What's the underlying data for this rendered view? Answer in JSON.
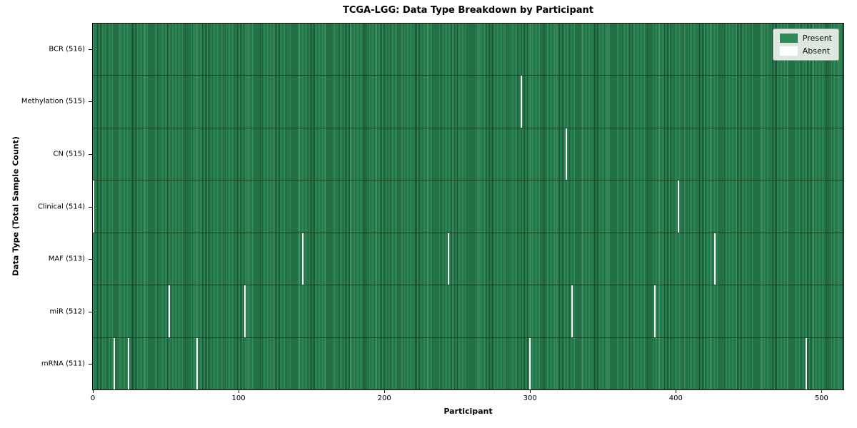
{
  "title": "TCGA-LGG: Data Type Breakdown by Participant",
  "axes": {
    "xlabel": "Participant",
    "ylabel": "Data Type (Total Sample Count)"
  },
  "legend": {
    "items": [
      {
        "label": "Present",
        "color": "#2e8b57"
      },
      {
        "label": "Absent",
        "color": "#ffffff"
      }
    ],
    "position": "upper-right"
  },
  "colors": {
    "present": "#2e8b57",
    "absent": "#ffffff",
    "cell_edge": "#0c2f1c",
    "axes_edge": "#000000",
    "legend_background": "#eef1ee",
    "background": "#ffffff"
  },
  "chart_data": {
    "type": "heatmap",
    "title": "TCGA-LGG: Data Type Breakdown by Participant",
    "xlabel": "Participant",
    "ylabel": "Data Type (Total Sample Count)",
    "x_ticks": [
      0,
      100,
      200,
      300,
      400,
      500
    ],
    "x_range": [
      -0.5,
      515.5
    ],
    "n_participants": 516,
    "grid": false,
    "legend_entries": [
      "Present",
      "Absent"
    ],
    "value_encoding": {
      "present": 1,
      "absent": 0
    },
    "rows": [
      {
        "label": "BCR (516)",
        "data_type": "BCR",
        "present_count": 516,
        "absent_participants": []
      },
      {
        "label": "Methylation (515)",
        "data_type": "Methylation",
        "present_count": 515,
        "absent_participants": [
          294
        ]
      },
      {
        "label": "CN (515)",
        "data_type": "CN",
        "present_count": 515,
        "absent_participants": [
          325
        ]
      },
      {
        "label": "Clinical (514)",
        "data_type": "Clinical",
        "present_count": 514,
        "absent_participants": [
          0,
          402
        ]
      },
      {
        "label": "MAF (513)",
        "data_type": "MAF",
        "present_count": 513,
        "absent_participants": [
          144,
          244,
          427
        ]
      },
      {
        "label": "miR (512)",
        "data_type": "miR",
        "present_count": 512,
        "absent_participants": [
          52,
          104,
          329,
          386
        ]
      },
      {
        "label": "mRNA (511)",
        "data_type": "mRNA",
        "present_count": 511,
        "absent_participants": [
          14,
          24,
          71,
          300,
          490
        ]
      }
    ]
  }
}
